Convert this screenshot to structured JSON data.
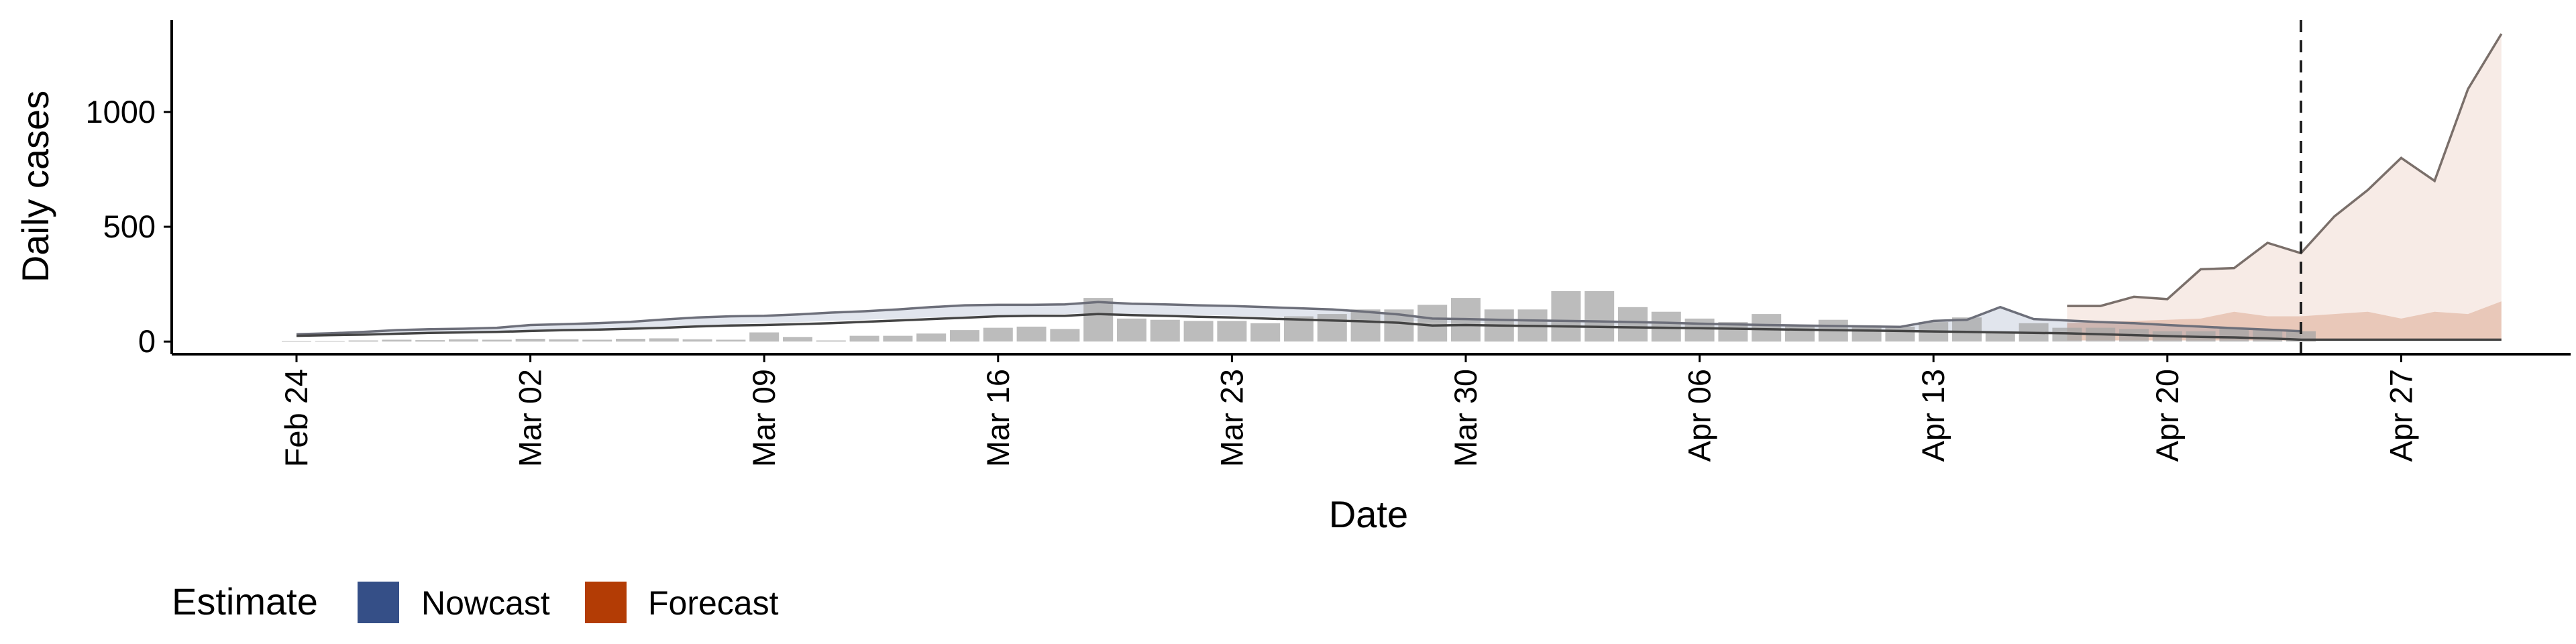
{
  "chart_data": {
    "type": "bar",
    "xlabel": "Date",
    "ylabel": "Daily cases",
    "x_ticks": [
      "Feb 24",
      "Mar 02",
      "Mar 09",
      "Mar 16",
      "Mar 23",
      "Mar 30",
      "Apr 06",
      "Apr 13",
      "Apr 20",
      "Apr 27"
    ],
    "y_ticks": [
      0,
      500,
      1000
    ],
    "ylim": [
      -55,
      1400
    ],
    "start_date": "2020-02-24",
    "grid": false,
    "legend": {
      "title": "Estimate",
      "position": "bottom-left",
      "items": [
        {
          "label": "Nowcast",
          "color": "#354f87"
        },
        {
          "label": "Forecast",
          "color": "#b33c05"
        }
      ]
    },
    "forecast_cutoff_date": "Apr 24",
    "reported_cases": {
      "dates": [
        "Feb 24",
        "Feb 25",
        "Feb 26",
        "Feb 27",
        "Feb 28",
        "Feb 29",
        "Mar 01",
        "Mar 02",
        "Mar 03",
        "Mar 04",
        "Mar 05",
        "Mar 06",
        "Mar 07",
        "Mar 08",
        "Mar 09",
        "Mar 10",
        "Mar 11",
        "Mar 12",
        "Mar 13",
        "Mar 14",
        "Mar 15",
        "Mar 16",
        "Mar 17",
        "Mar 18",
        "Mar 19",
        "Mar 20",
        "Mar 21",
        "Mar 22",
        "Mar 23",
        "Mar 24",
        "Mar 25",
        "Mar 26",
        "Mar 27",
        "Mar 28",
        "Mar 29",
        "Mar 30",
        "Mar 31",
        "Apr 01",
        "Apr 02",
        "Apr 03",
        "Apr 04",
        "Apr 05",
        "Apr 06",
        "Apr 07",
        "Apr 08",
        "Apr 09",
        "Apr 10",
        "Apr 11",
        "Apr 12",
        "Apr 13",
        "Apr 14",
        "Apr 15",
        "Apr 16",
        "Apr 17",
        "Apr 18",
        "Apr 19",
        "Apr 20",
        "Apr 21",
        "Apr 22",
        "Apr 23",
        "Apr 24"
      ],
      "values": [
        2,
        3,
        5,
        8,
        6,
        10,
        8,
        12,
        10,
        8,
        12,
        14,
        10,
        8,
        40,
        20,
        5,
        25,
        25,
        35,
        50,
        60,
        65,
        55,
        190,
        100,
        95,
        90,
        90,
        80,
        110,
        120,
        140,
        140,
        160,
        190,
        140,
        140,
        220,
        220,
        150,
        130,
        100,
        85,
        120,
        70,
        95,
        70,
        65,
        85,
        105,
        40,
        80,
        60,
        60,
        55,
        45,
        45,
        55,
        50,
        45
      ]
    },
    "nowcast": {
      "dates": [
        "Feb 24",
        "Feb 25",
        "Feb 26",
        "Feb 27",
        "Feb 28",
        "Feb 29",
        "Mar 01",
        "Mar 02",
        "Mar 03",
        "Mar 04",
        "Mar 05",
        "Mar 06",
        "Mar 07",
        "Mar 08",
        "Mar 09",
        "Mar 10",
        "Mar 11",
        "Mar 12",
        "Mar 13",
        "Mar 14",
        "Mar 15",
        "Mar 16",
        "Mar 17",
        "Mar 18",
        "Mar 19",
        "Mar 20",
        "Mar 21",
        "Mar 22",
        "Mar 23",
        "Mar 24",
        "Mar 25",
        "Mar 26",
        "Mar 27",
        "Mar 28",
        "Mar 29",
        "Mar 30",
        "Mar 31",
        "Apr 01",
        "Apr 02",
        "Apr 03",
        "Apr 04",
        "Apr 05",
        "Apr 06",
        "Apr 07",
        "Apr 08",
        "Apr 09",
        "Apr 10",
        "Apr 11",
        "Apr 12",
        "Apr 13",
        "Apr 14",
        "Apr 15",
        "Apr 16",
        "Apr 17",
        "Apr 18",
        "Apr 19",
        "Apr 20",
        "Apr 21",
        "Apr 22",
        "Apr 23",
        "Apr 24"
      ],
      "lower": [
        22,
        25,
        28,
        32,
        35,
        38,
        42,
        48,
        52,
        55,
        60,
        66,
        72,
        75,
        80,
        85,
        90,
        95,
        100,
        105,
        110,
        115,
        118,
        120,
        125,
        120,
        118,
        115,
        112,
        108,
        105,
        100,
        95,
        90,
        85,
        80,
        78,
        75,
        72,
        70,
        68,
        65,
        62,
        58,
        55,
        52,
        50,
        48,
        45,
        42,
        40,
        38,
        35,
        32,
        28,
        25,
        22,
        18,
        15,
        12,
        8
      ],
      "upper": [
        32,
        36,
        42,
        50,
        54,
        56,
        60,
        72,
        76,
        80,
        86,
        96,
        105,
        110,
        112,
        118,
        126,
        132,
        140,
        150,
        158,
        160,
        160,
        162,
        172,
        165,
        162,
        158,
        155,
        150,
        145,
        140,
        130,
        118,
        100,
        98,
        95,
        92,
        90,
        88,
        85,
        82,
        78,
        75,
        72,
        70,
        68,
        66,
        64,
        90,
        95,
        150,
        98,
        92,
        85,
        80,
        72,
        65,
        58,
        52,
        45
      ]
    },
    "forecast": {
      "dates": [
        "Apr 17",
        "Apr 18",
        "Apr 19",
        "Apr 20",
        "Apr 21",
        "Apr 22",
        "Apr 23",
        "Apr 24",
        "Apr 25",
        "Apr 26",
        "Apr 27",
        "Apr 28",
        "Apr 29",
        "Apr 30"
      ],
      "lower": [
        5,
        5,
        5,
        5,
        5,
        5,
        5,
        5,
        5,
        5,
        5,
        5,
        5,
        5
      ],
      "upper": [
        155,
        155,
        195,
        185,
        315,
        320,
        430,
        385,
        545,
        660,
        800,
        700,
        1100,
        1340
      ],
      "inner_upper": [
        80,
        85,
        90,
        95,
        100,
        130,
        110,
        110,
        120,
        130,
        100,
        130,
        120,
        175
      ]
    },
    "median_line": {
      "dates": [
        "Feb 24",
        "Feb 25",
        "Feb 26",
        "Feb 27",
        "Feb 28",
        "Feb 29",
        "Mar 01",
        "Mar 02",
        "Mar 03",
        "Mar 04",
        "Mar 05",
        "Mar 06",
        "Mar 07",
        "Mar 08",
        "Mar 09",
        "Mar 10",
        "Mar 11",
        "Mar 12",
        "Mar 13",
        "Mar 14",
        "Mar 15",
        "Mar 16",
        "Mar 17",
        "Mar 18",
        "Mar 19",
        "Mar 20",
        "Mar 21",
        "Mar 22",
        "Mar 23",
        "Mar 24",
        "Mar 25",
        "Mar 26",
        "Mar 27",
        "Mar 28",
        "Mar 29",
        "Mar 30",
        "Mar 31",
        "Apr 01",
        "Apr 02",
        "Apr 03",
        "Apr 04",
        "Apr 05",
        "Apr 06",
        "Apr 07",
        "Apr 08",
        "Apr 09",
        "Apr 10",
        "Apr 11",
        "Apr 12",
        "Apr 13",
        "Apr 14",
        "Apr 15",
        "Apr 16",
        "Apr 17",
        "Apr 18",
        "Apr 19",
        "Apr 20",
        "Apr 21",
        "Apr 22",
        "Apr 23",
        "Apr 24",
        "Apr 25",
        "Apr 26",
        "Apr 27",
        "Apr 28",
        "Apr 29",
        "Apr 30"
      ],
      "values": [
        25,
        28,
        30,
        34,
        38,
        40,
        42,
        46,
        50,
        52,
        56,
        60,
        66,
        70,
        72,
        76,
        80,
        86,
        92,
        98,
        104,
        110,
        112,
        112,
        120,
        115,
        112,
        108,
        105,
        100,
        96,
        92,
        88,
        82,
        70,
        72,
        70,
        68,
        66,
        64,
        62,
        60,
        58,
        56,
        54,
        52,
        50,
        48,
        46,
        44,
        42,
        40,
        38,
        36,
        32,
        28,
        24,
        20,
        18,
        14,
        8,
        8,
        8,
        8,
        8,
        8,
        8
      ]
    }
  }
}
